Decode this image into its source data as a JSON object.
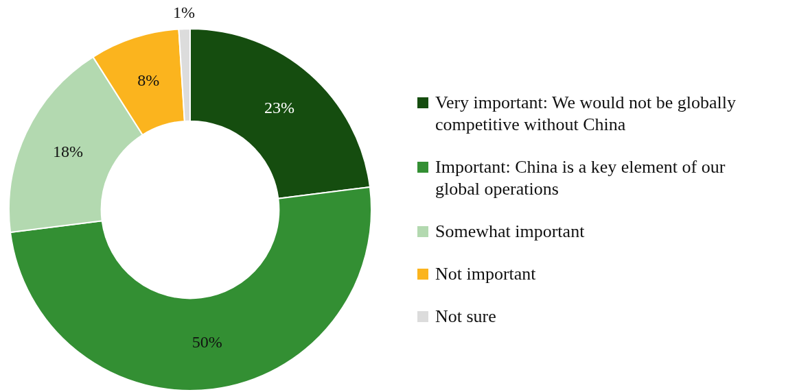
{
  "chart_data": {
    "type": "donut",
    "categories": [
      "Very important: We would not be globally competitive without China",
      "Important: China is a key element of our global operations",
      "Somewhat important",
      "Not important",
      "Not sure"
    ],
    "values": [
      23,
      50,
      18,
      8,
      1
    ],
    "colors": [
      "#154d0f",
      "#338f33",
      "#b3d9b0",
      "#fbb41e",
      "#dcdcdc"
    ],
    "value_labels": [
      "23%",
      "50%",
      "18%",
      "8%",
      "1%"
    ],
    "legend": "right"
  }
}
